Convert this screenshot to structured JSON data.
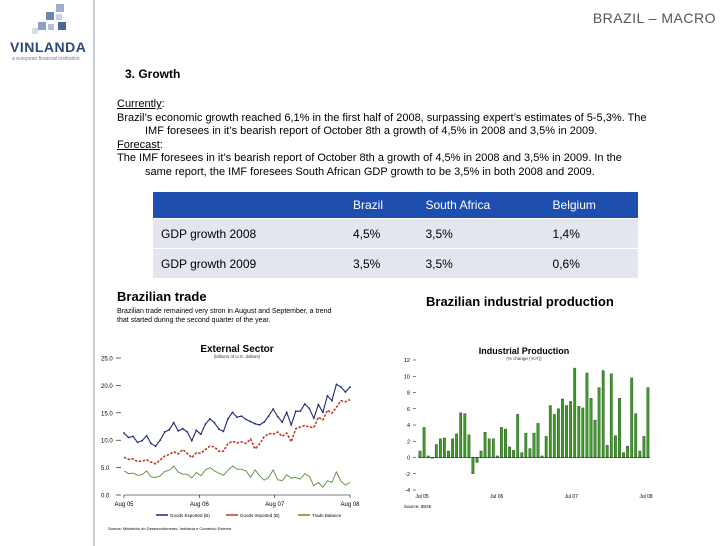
{
  "logo": {
    "name": "VINLANDA",
    "tagline": "a european financial institution",
    "color": "#2b4a7c"
  },
  "slide_title": "BRAZIL  – MACRO",
  "section_heading": "3. Growth",
  "currently": {
    "label": "Currently",
    "text": "Brazil’s economic growth reached 6,1% in the first half of 2008, surpassing expert’s estimates of 5-5,3%.  The",
    "text2": "IMF foresees in it’s bearish report of October 8th a growth of 4,5% in 2008 and 3,5% in 2009."
  },
  "forecast": {
    "label": "Forecast",
    "text": "The IMF foresees in it’s bearish report of October 8th a growth of 4,5% in 2008 and 3,5% in 2009.  In the",
    "text2": "same report, the IMF foresees South African GDP growth to be 3,5% in both 2008 and 2009."
  },
  "gdp_table": {
    "header_color": "#1e4fb0",
    "columns": [
      "",
      "Brazil",
      "South Africa",
      "Belgium"
    ],
    "rows": [
      [
        "GDP growth 2008",
        "4,5%",
        "3,5%",
        "1,4%"
      ],
      [
        "GDP growth 2009",
        "3,5%",
        "3,5%",
        "0,6%"
      ]
    ]
  },
  "trade": {
    "title": "Brazilian trade",
    "description": "Brazilian trade remained very stron in August and September, a trend that started during the second quarter of the year."
  },
  "industrial": {
    "title": "Brazilian industrial production"
  },
  "chart_data": [
    {
      "type": "line",
      "title": "External Sector",
      "subtitle": "(billions of U.S. dollars)",
      "x_ticks": [
        "Aug 05",
        "Aug 06",
        "Aug 07",
        "Aug 08"
      ],
      "ylim": [
        0,
        25
      ],
      "y_ticks": [
        "0.0",
        "5.0",
        "10.0",
        "15.0",
        "20.0",
        "25.0"
      ],
      "legend": [
        "Goods Exported (B)",
        "Goods Imported (B)",
        "Trade Balance"
      ],
      "source": "Source: Ministério do Desenvolvimento, Indústria e Comércio Exterior",
      "series": [
        {
          "name": "Goods Exported (B)",
          "color": "#1b2a78",
          "values": [
            11.3,
            10.5,
            10.7,
            9.6,
            9.9,
            10.8,
            9.4,
            8.9,
            10.0,
            11.5,
            11.9,
            13.2,
            11.7,
            12.1,
            11.5,
            9.9,
            11.8,
            11.1,
            12.9,
            13.9,
            13.2,
            12.0,
            11.6,
            13.9,
            15.1,
            14.2,
            14.4,
            13.8,
            13.4,
            13.0,
            12.8,
            13.3,
            14.4,
            15.7,
            14.3,
            13.3,
            15.1,
            12.8,
            15.3,
            15.3,
            16.6,
            15.8,
            14.0,
            16.5,
            15.1,
            18.1,
            17.2,
            20.2,
            19.7,
            18.8,
            19.7
          ]
        },
        {
          "name": "Goods Imported (B)",
          "color": "#c0392b",
          "values": [
            6.9,
            6.5,
            6.6,
            6.1,
            6.2,
            6.4,
            6.0,
            5.7,
            6.4,
            7.1,
            7.4,
            7.9,
            7.5,
            8.3,
            7.6,
            6.8,
            7.7,
            7.6,
            8.3,
            8.9,
            8.8,
            8.0,
            8.0,
            9.4,
            9.8,
            9.5,
            9.7,
            9.4,
            10.2,
            8.4,
            9.3,
            10.6,
            11.2,
            11.1,
            11.5,
            10.7,
            11.3,
            9.7,
            12.1,
            12.4,
            12.7,
            12.4,
            12.3,
            14.2,
            13.7,
            15.5,
            14.9,
            16.0,
            17.2,
            17.0,
            17.4
          ]
        },
        {
          "name": "Trade Balance",
          "color": "#5a8f3a",
          "values": [
            4.4,
            3.9,
            4.0,
            3.6,
            3.7,
            4.4,
            3.3,
            3.2,
            3.5,
            4.3,
            4.5,
            5.3,
            4.2,
            3.8,
            3.8,
            3.1,
            4.1,
            3.5,
            4.6,
            5.0,
            4.4,
            4.0,
            3.6,
            4.5,
            5.3,
            4.7,
            4.7,
            4.4,
            3.2,
            4.6,
            3.5,
            2.7,
            3.2,
            4.6,
            2.8,
            2.6,
            3.7,
            3.1,
            3.2,
            2.9,
            3.9,
            3.4,
            1.7,
            2.3,
            1.4,
            2.6,
            2.3,
            4.2,
            2.5,
            1.8,
            2.3
          ]
        }
      ]
    },
    {
      "type": "bar",
      "title": "Industrial Production",
      "subtitle": "(% change (YoY))",
      "x_ticks": [
        "Jul 05",
        "Jul 06",
        "Jul 07",
        "Jul 08"
      ],
      "ylim": [
        -4,
        12
      ],
      "y_ticks": [
        "-4",
        "-2",
        "0",
        "2",
        "4",
        "6",
        "8",
        "10",
        "12"
      ],
      "source": "Source: IBGE",
      "colors": {
        "bar": "#3f9a2a",
        "bar_dark": "#1f4d14"
      },
      "values": [
        0.8,
        3.7,
        0.2,
        -0.1,
        1.6,
        2.3,
        2.4,
        0.8,
        2.3,
        2.9,
        5.5,
        5.4,
        2.8,
        -2.0,
        -0.6,
        0.8,
        3.1,
        2.3,
        2.3,
        0.2,
        3.7,
        3.5,
        1.3,
        0.9,
        5.3,
        0.6,
        3.0,
        1.1,
        3.0,
        4.2,
        0.2,
        2.6,
        6.4,
        5.3,
        6.0,
        7.2,
        6.4,
        6.9,
        11.0,
        6.3,
        6.1,
        10.4,
        7.3,
        4.6,
        8.6,
        10.7,
        1.5,
        10.3,
        2.7,
        7.3,
        0.6,
        1.4,
        9.8,
        5.4,
        0.8,
        2.6,
        8.6
      ]
    }
  ]
}
